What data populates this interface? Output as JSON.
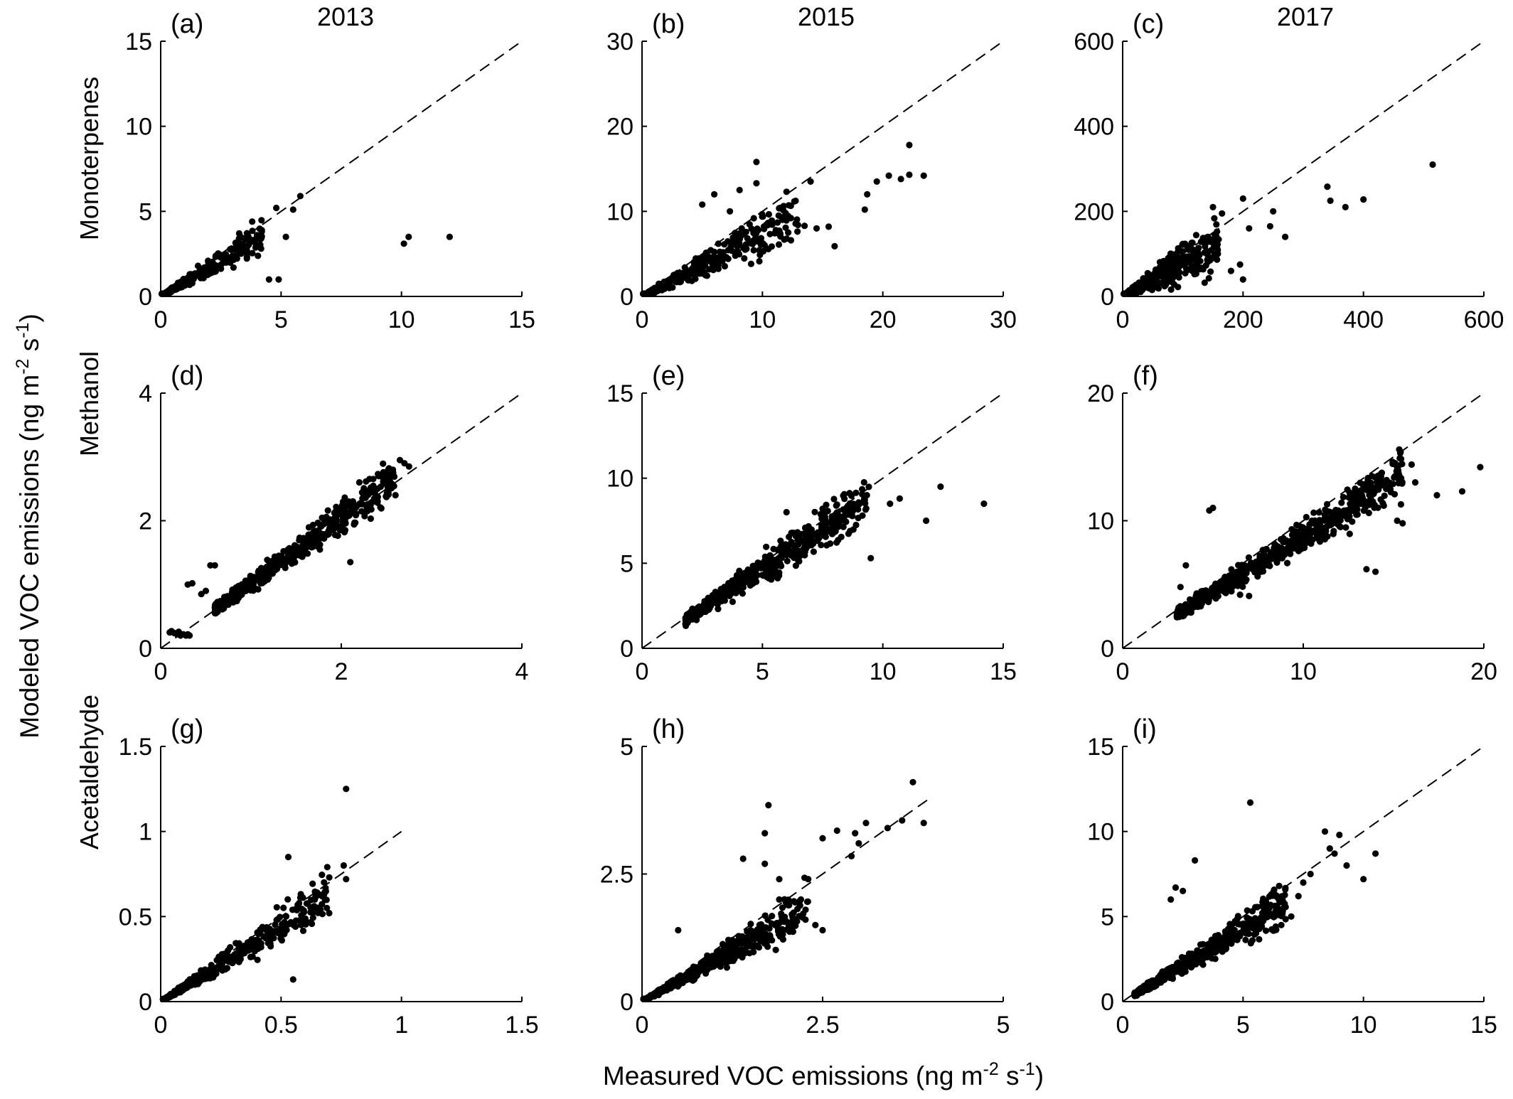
{
  "figure": {
    "xlabel": "Measured VOC emissions (ng m",
    "xlabel_sup1": "-2",
    "xlabel_mid": " s",
    "xlabel_sup2": "-1",
    "xlabel_end": ")",
    "ylabel": "Modeled VOC emissions (ng m",
    "ylabel_sup1": "-2",
    "ylabel_mid": " s",
    "ylabel_sup2": "-1",
    "ylabel_end": ")",
    "years": [
      "2013",
      "2015",
      "2017"
    ],
    "rows": [
      "Monoterpenes",
      "Methanol",
      "Acetaldehyde"
    ],
    "point_color": "#000000",
    "line_color": "#000000"
  },
  "chart_data": [
    {
      "type": "scatter",
      "panel": "(a)",
      "col": 0,
      "row": 0,
      "year": "2013",
      "compound": "Monoterpenes",
      "xlim": [
        0,
        15
      ],
      "ylim": [
        0,
        15
      ],
      "xticks": [
        "0",
        "5",
        "10",
        "15"
      ],
      "yticks": [
        "0",
        "5",
        "10",
        "15"
      ],
      "one_to_one": [
        0,
        15
      ],
      "cluster": {
        "n": 420,
        "xmin": 0.05,
        "xmax": 4.2,
        "ratio": 0.85,
        "spread": 0.28,
        "skew": 2.4
      },
      "points": [
        [
          4.8,
          5.2
        ],
        [
          5.5,
          5.1
        ],
        [
          5.8,
          5.9
        ],
        [
          4.5,
          1.0
        ],
        [
          4.9,
          1.0
        ],
        [
          5.2,
          3.5
        ],
        [
          4.2,
          3.9
        ],
        [
          10.1,
          3.1
        ],
        [
          10.3,
          3.5
        ],
        [
          12.0,
          3.5
        ],
        [
          4.0,
          3.6
        ],
        [
          3.8,
          4.4
        ]
      ]
    },
    {
      "type": "scatter",
      "panel": "(b)",
      "col": 1,
      "row": 0,
      "year": "2015",
      "compound": "Monoterpenes",
      "xlim": [
        0,
        30
      ],
      "ylim": [
        0,
        30
      ],
      "xticks": [
        "0",
        "10",
        "20",
        "30"
      ],
      "yticks": [
        "0",
        "10",
        "20",
        "30"
      ],
      "one_to_one": [
        0,
        30
      ],
      "cluster": {
        "n": 520,
        "xmin": 0.1,
        "xmax": 13,
        "ratio": 0.72,
        "spread": 0.35,
        "skew": 2.6
      },
      "points": [
        [
          9.5,
          15.8
        ],
        [
          9.5,
          13.3
        ],
        [
          8.1,
          12.5
        ],
        [
          6.0,
          12.0
        ],
        [
          5.0,
          10.8
        ],
        [
          7.3,
          10.0
        ],
        [
          14.0,
          13.5
        ],
        [
          16.0,
          5.9
        ],
        [
          14.5,
          8.0
        ],
        [
          15.5,
          8.2
        ],
        [
          18.5,
          10.2
        ],
        [
          18.7,
          12.0
        ],
        [
          19.5,
          13.5
        ],
        [
          20.5,
          14.2
        ],
        [
          21.5,
          13.8
        ],
        [
          22.2,
          14.3
        ],
        [
          22.2,
          17.8
        ],
        [
          23.4,
          14.2
        ],
        [
          12.0,
          12.3
        ],
        [
          13.5,
          8.3
        ]
      ]
    },
    {
      "type": "scatter",
      "panel": "(c)",
      "col": 2,
      "row": 0,
      "year": "2017",
      "compound": "Monoterpenes",
      "xlim": [
        0,
        600
      ],
      "ylim": [
        0,
        600
      ],
      "xticks": [
        "0",
        "200",
        "400",
        "600"
      ],
      "yticks": [
        "0",
        "200",
        "400",
        "600"
      ],
      "one_to_one": [
        0,
        600
      ],
      "cluster": {
        "n": 480,
        "xmin": 2,
        "xmax": 160,
        "ratio": 0.78,
        "spread": 0.55,
        "skew": 2.0
      },
      "points": [
        [
          200,
          230
        ],
        [
          210,
          160
        ],
        [
          195,
          75
        ],
        [
          200,
          40
        ],
        [
          180,
          60
        ],
        [
          250,
          200
        ],
        [
          245,
          165
        ],
        [
          270,
          140
        ],
        [
          340,
          258
        ],
        [
          345,
          225
        ],
        [
          370,
          210
        ],
        [
          400,
          228
        ],
        [
          515,
          310
        ],
        [
          165,
          195
        ],
        [
          150,
          210
        ]
      ]
    },
    {
      "type": "scatter",
      "panel": "(d)",
      "col": 0,
      "row": 1,
      "year": "2013",
      "compound": "Methanol",
      "xlim": [
        0,
        4
      ],
      "ylim": [
        0,
        4
      ],
      "xticks": [
        "0",
        "2",
        "4"
      ],
      "yticks": [
        "0",
        "2",
        "4"
      ],
      "one_to_one": [
        0,
        4
      ],
      "cluster": {
        "n": 560,
        "xmin": 0.6,
        "xmax": 2.6,
        "ratio": 1.02,
        "spread": 0.11,
        "skew": 1.5
      },
      "points": [
        [
          0.1,
          0.25
        ],
        [
          0.12,
          0.27
        ],
        [
          0.15,
          0.24
        ],
        [
          0.18,
          0.22
        ],
        [
          0.2,
          0.26
        ],
        [
          0.22,
          0.2
        ],
        [
          0.25,
          0.22
        ],
        [
          0.28,
          0.2
        ],
        [
          0.3,
          0.22
        ],
        [
          0.32,
          0.2
        ],
        [
          0.3,
          1.0
        ],
        [
          0.35,
          1.02
        ],
        [
          0.55,
          1.3
        ],
        [
          0.6,
          1.3
        ],
        [
          0.45,
          0.85
        ],
        [
          0.5,
          0.9
        ],
        [
          2.65,
          2.95
        ],
        [
          2.7,
          2.9
        ],
        [
          2.75,
          2.85
        ],
        [
          2.6,
          2.4
        ],
        [
          2.55,
          2.55
        ],
        [
          2.4,
          2.5
        ],
        [
          2.2,
          2.6
        ],
        [
          2.1,
          1.35
        ]
      ]
    },
    {
      "type": "scatter",
      "panel": "(e)",
      "col": 1,
      "row": 1,
      "year": "2015",
      "compound": "Methanol",
      "xlim": [
        0,
        15
      ],
      "ylim": [
        0,
        15
      ],
      "xticks": [
        "0",
        "5",
        "10",
        "15"
      ],
      "yticks": [
        "0",
        "5",
        "10",
        "15"
      ],
      "one_to_one": [
        0,
        15
      ],
      "cluster": {
        "n": 540,
        "xmin": 1.8,
        "xmax": 9.5,
        "ratio": 0.93,
        "spread": 0.16,
        "skew": 1.5
      },
      "points": [
        [
          10.3,
          8.5
        ],
        [
          10.7,
          8.8
        ],
        [
          11.8,
          7.5
        ],
        [
          12.4,
          9.5
        ],
        [
          14.2,
          8.5
        ],
        [
          9.5,
          5.3
        ],
        [
          8.5,
          7.9
        ],
        [
          7.5,
          8.2
        ],
        [
          6.0,
          8.0
        ]
      ]
    },
    {
      "type": "scatter",
      "panel": "(f)",
      "col": 2,
      "row": 1,
      "year": "2017",
      "compound": "Methanol",
      "xlim": [
        0,
        20
      ],
      "ylim": [
        0,
        20
      ],
      "xticks": [
        "0",
        "10",
        "20"
      ],
      "yticks": [
        "0",
        "10",
        "20"
      ],
      "one_to_one": [
        0,
        20
      ],
      "cluster": {
        "n": 620,
        "xmin": 3,
        "xmax": 15.5,
        "ratio": 0.88,
        "spread": 0.13,
        "skew": 1.3
      },
      "points": [
        [
          16.0,
          14.4
        ],
        [
          16.2,
          13.0
        ],
        [
          17.4,
          12.0
        ],
        [
          18.8,
          12.3
        ],
        [
          19.8,
          14.2
        ],
        [
          15.5,
          9.8
        ],
        [
          15.2,
          10.0
        ],
        [
          14.0,
          6.0
        ],
        [
          13.5,
          6.2
        ],
        [
          7.0,
          4.1
        ],
        [
          6.5,
          4.2
        ],
        [
          4.1,
          4.3
        ],
        [
          3.2,
          4.8
        ],
        [
          3.5,
          6.5
        ],
        [
          5.0,
          11.0
        ],
        [
          4.8,
          10.8
        ]
      ]
    },
    {
      "type": "scatter",
      "panel": "(g)",
      "col": 0,
      "row": 2,
      "year": "2013",
      "compound": "Acetaldehyde",
      "xlim": [
        0,
        1.5
      ],
      "ylim": [
        0,
        1.5
      ],
      "xticks": [
        "0",
        "0.5",
        "1",
        "1.5"
      ],
      "yticks": [
        "0",
        "0.5",
        "1",
        "1.5"
      ],
      "one_to_one": [
        0,
        1
      ],
      "cluster": {
        "n": 560,
        "xmin": 0.01,
        "xmax": 0.7,
        "ratio": 0.88,
        "spread": 0.22,
        "skew": 2.2
      },
      "points": [
        [
          0.77,
          1.25
        ],
        [
          0.77,
          0.72
        ],
        [
          0.76,
          0.8
        ],
        [
          0.53,
          0.85
        ],
        [
          0.55,
          0.13
        ],
        [
          0.7,
          0.73
        ],
        [
          0.64,
          0.6
        ],
        [
          0.67,
          0.62
        ],
        [
          0.69,
          0.55
        ]
      ]
    },
    {
      "type": "scatter",
      "panel": "(h)",
      "col": 1,
      "row": 2,
      "year": "2015",
      "compound": "Acetaldehyde",
      "xlim": [
        0,
        5
      ],
      "ylim": [
        0,
        5
      ],
      "xticks": [
        "0",
        "2.5",
        "5"
      ],
      "yticks": [
        "0",
        "2.5",
        "5"
      ],
      "one_to_one": [
        0,
        4
      ],
      "cluster": {
        "n": 560,
        "xmin": 0.02,
        "xmax": 2.3,
        "ratio": 0.8,
        "spread": 0.22,
        "skew": 1.9
      },
      "points": [
        [
          1.75,
          3.85
        ],
        [
          1.7,
          3.3
        ],
        [
          1.4,
          2.8
        ],
        [
          1.7,
          2.7
        ],
        [
          1.9,
          2.4
        ],
        [
          2.3,
          2.4
        ],
        [
          2.4,
          1.5
        ],
        [
          2.5,
          1.4
        ],
        [
          2.7,
          3.35
        ],
        [
          2.95,
          3.3
        ],
        [
          3.0,
          3.1
        ],
        [
          2.9,
          2.85
        ],
        [
          3.1,
          3.5
        ],
        [
          3.4,
          3.4
        ],
        [
          3.6,
          3.55
        ],
        [
          3.75,
          4.3
        ],
        [
          3.9,
          3.5
        ],
        [
          2.5,
          3.2
        ],
        [
          2.2,
          2.0
        ],
        [
          1.9,
          2.0
        ],
        [
          0.5,
          1.4
        ]
      ]
    },
    {
      "type": "scatter",
      "panel": "(i)",
      "col": 2,
      "row": 2,
      "year": "2017",
      "compound": "Acetaldehyde",
      "xlim": [
        0,
        15
      ],
      "ylim": [
        0,
        15
      ],
      "xticks": [
        "0",
        "5",
        "10",
        "15"
      ],
      "yticks": [
        "0",
        "5",
        "10",
        "15"
      ],
      "one_to_one": [
        0,
        15
      ],
      "cluster": {
        "n": 600,
        "xmin": 0.5,
        "xmax": 6.8,
        "ratio": 0.85,
        "spread": 0.2,
        "skew": 1.8
      },
      "points": [
        [
          5.3,
          11.7
        ],
        [
          3.0,
          8.3
        ],
        [
          8.4,
          10.0
        ],
        [
          8.6,
          9.0
        ],
        [
          8.8,
          8.7
        ],
        [
          9.0,
          9.8
        ],
        [
          9.3,
          8.0
        ],
        [
          10.0,
          7.2
        ],
        [
          10.5,
          8.7
        ],
        [
          7.5,
          7.0
        ],
        [
          7.8,
          7.5
        ],
        [
          7.3,
          6.2
        ],
        [
          7.0,
          5.0
        ],
        [
          6.5,
          6.8
        ],
        [
          2.2,
          6.7
        ],
        [
          2.0,
          6.0
        ],
        [
          2.5,
          6.5
        ]
      ]
    }
  ]
}
